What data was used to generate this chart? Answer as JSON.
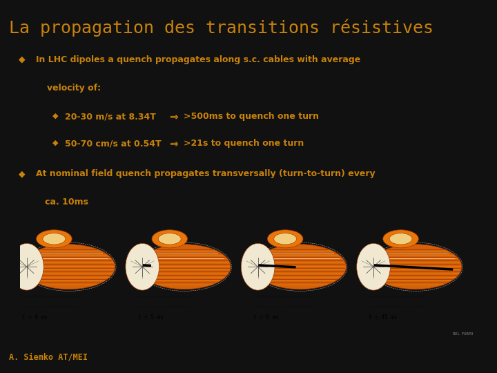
{
  "title": "La propagation des transitions résistives",
  "title_color": "#C8820A",
  "title_fontsize": 18,
  "background_top": "#1A1A1A",
  "background_main": "#111111",
  "footer_bg_color": "#4A6E8A",
  "text_color": "#C8820A",
  "image_bg_color": "#FFFFFF",
  "footer_text": "A. Siemko AT/MEI",
  "footer_text_color": "#C8820A",
  "image_label1": "t = 0 ms",
  "image_label2": "t = 5 ms",
  "image_label3": "t = 6 ms",
  "image_label4": "t = 45 ms",
  "cable_orange": "#D4610A",
  "cable_orange_light": "#E8850A",
  "cable_orange_dark": "#A03800",
  "quench_color": "#000000",
  "fs_title": 18,
  "fs_body": 9,
  "fs_sub": 9
}
